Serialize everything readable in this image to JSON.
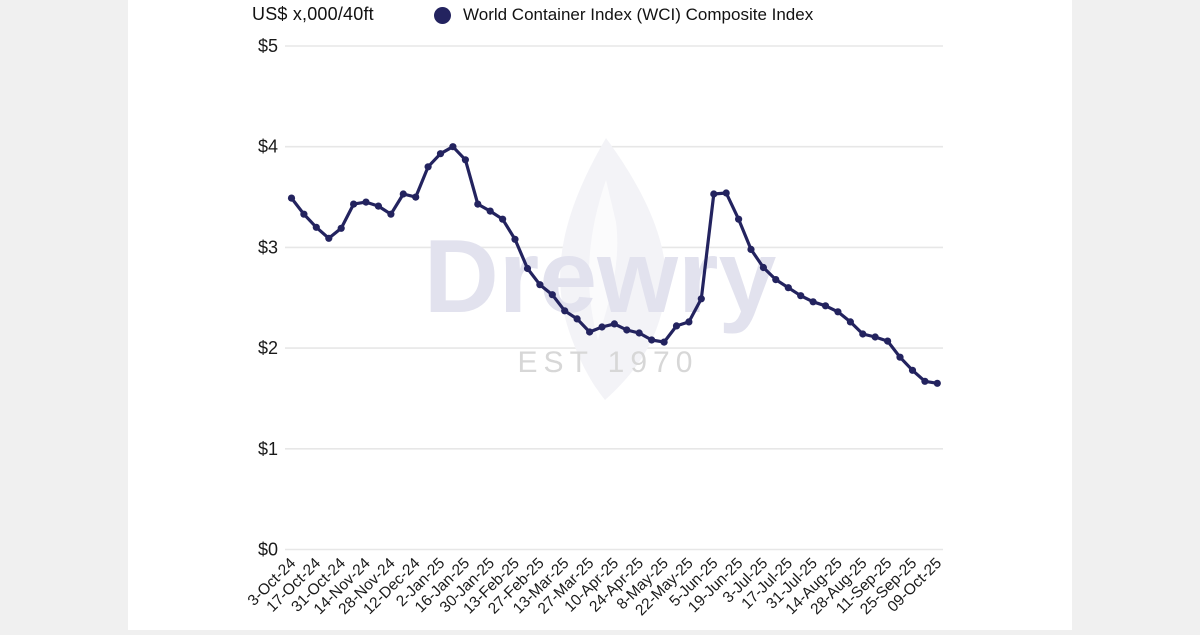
{
  "page": {
    "background_color": "#f0f0f0",
    "card_background_color": "#ffffff"
  },
  "header": {
    "axis_title": "US$ x,000/40ft",
    "legend": {
      "marker_color": "#23235f",
      "label": "World Container Index (WCI) Composite Index"
    }
  },
  "watermark": {
    "brand": "Drewry",
    "tagline": "EST 1970",
    "brand_color": "#e2e2ee",
    "tagline_color": "#d7d7d7",
    "flame_color": "#f3f3f7"
  },
  "chart_data": {
    "type": "line",
    "title": "",
    "xlabel": "",
    "ylabel": "US$ x,000/40ft",
    "ylim": [
      0,
      5
    ],
    "grid": true,
    "gridline_color": "#e7e7e7",
    "legend_position": "top",
    "tick_text_color": "#1a1a1a",
    "y_ticks": [
      {
        "label": "$5",
        "value": 5
      },
      {
        "label": "$4",
        "value": 4
      },
      {
        "label": "$3",
        "value": 3
      },
      {
        "label": "$2",
        "value": 2
      },
      {
        "label": "$1",
        "value": 1
      },
      {
        "label": "$0",
        "value": 0
      }
    ],
    "x_label_every": 2,
    "series": [
      {
        "name": "World Container Index (WCI) Composite Index",
        "color": "#23235f",
        "x": [
          "3-Oct-24",
          "10-Oct-24",
          "17-Oct-24",
          "24-Oct-24",
          "31-Oct-24",
          "7-Nov-24",
          "14-Nov-24",
          "21-Nov-24",
          "28-Nov-24",
          "5-Dec-24",
          "12-Dec-24",
          "19-Dec-24",
          "2-Jan-25",
          "9-Jan-25",
          "16-Jan-25",
          "23-Jan-25",
          "30-Jan-25",
          "6-Feb-25",
          "13-Feb-25",
          "20-Feb-25",
          "27-Feb-25",
          "6-Mar-25",
          "13-Mar-25",
          "20-Mar-25",
          "27-Mar-25",
          "3-Apr-25",
          "10-Apr-25",
          "17-Apr-25",
          "24-Apr-25",
          "1-May-25",
          "8-May-25",
          "15-May-25",
          "22-May-25",
          "29-May-25",
          "5-Jun-25",
          "12-Jun-25",
          "19-Jun-25",
          "26-Jun-25",
          "3-Jul-25",
          "10-Jul-25",
          "17-Jul-25",
          "24-Jul-25",
          "31-Jul-25",
          "7-Aug-25",
          "14-Aug-25",
          "21-Aug-25",
          "28-Aug-25",
          "4-Sep-25",
          "11-Sep-25",
          "18-Sep-25",
          "25-Sep-25",
          "2-Oct-25",
          "09-Oct-25"
        ],
        "values": [
          3.49,
          3.33,
          3.2,
          3.09,
          3.19,
          3.43,
          3.45,
          3.41,
          3.33,
          3.53,
          3.5,
          3.8,
          3.93,
          4.0,
          3.87,
          3.43,
          3.36,
          3.28,
          3.08,
          2.79,
          2.63,
          2.53,
          2.37,
          2.29,
          2.16,
          2.21,
          2.24,
          2.18,
          2.15,
          2.08,
          2.06,
          2.22,
          2.26,
          2.49,
          3.53,
          3.54,
          3.28,
          2.98,
          2.8,
          2.68,
          2.6,
          2.52,
          2.46,
          2.42,
          2.36,
          2.26,
          2.14,
          2.11,
          2.07,
          1.91,
          1.78,
          1.67,
          1.65
        ]
      }
    ],
    "x_tick_labels": [
      "3-Oct-24",
      "17-Oct-24",
      "31-Oct-24",
      "14-Nov-24",
      "28-Nov-24",
      "12-Dec-24",
      "2-Jan-25",
      "16-Jan-25",
      "30-Jan-25",
      "13-Feb-25",
      "27-Feb-25",
      "13-Mar-25",
      "27-Mar-25",
      "10-Apr-25",
      "24-Apr-25",
      "8-May-25",
      "22-May-25",
      "5-Jun-25",
      "19-Jun-25",
      "3-Jul-25",
      "17-Jul-25",
      "31-Jul-25",
      "14-Aug-25",
      "28-Aug-25",
      "11-Sep-25",
      "25-Sep-25",
      "09-Oct-25"
    ]
  }
}
